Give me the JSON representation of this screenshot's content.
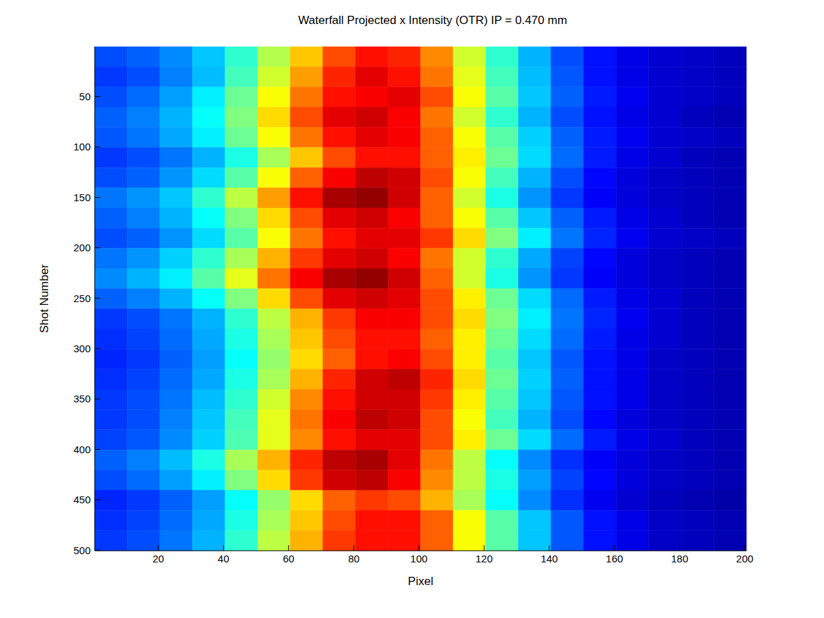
{
  "chart_data": {
    "type": "heatmap",
    "title": "Waterfall Projected x Intensity (OTR) IP = 0.470 mm",
    "x_label": "Pixel",
    "y_label": "Shot Number",
    "xlim": [
      0.5,
      200.5
    ],
    "xticks": [
      20,
      40,
      60,
      80,
      100,
      120,
      140,
      160,
      180,
      200
    ],
    "ylim": [
      0.5,
      500.5
    ],
    "yticks": [
      50,
      100,
      150,
      200,
      250,
      300,
      350,
      400,
      450,
      500
    ],
    "x_bins": [
      0.5,
      10.5,
      20.5,
      30.5,
      40.5,
      50.5,
      60.5,
      70.5,
      80.5,
      90.5,
      100.5,
      110.5,
      120.5,
      130.5,
      140.5,
      150.5,
      160.5,
      170.5,
      180.5,
      190.5,
      200.5
    ],
    "y_bins": [
      0.5,
      20.5,
      40.5,
      60.5,
      80.5,
      100.5,
      120.5,
      140.5,
      160.5,
      180.5,
      200.5,
      220.5,
      240.5,
      260.5,
      280.5,
      300.5,
      320.5,
      340.5,
      360.5,
      380.5,
      400.5,
      420.5,
      440.5,
      460.5,
      480.5,
      500.5
    ],
    "zlim": [
      0,
      1
    ],
    "cells": [
      [
        0.2,
        0.22,
        0.26,
        0.32,
        0.42,
        0.55,
        0.68,
        0.8,
        0.86,
        0.84,
        0.74,
        0.58,
        0.42,
        0.3,
        0.2,
        0.14,
        0.1,
        0.08,
        0.07,
        0.06
      ],
      [
        0.18,
        0.2,
        0.25,
        0.31,
        0.44,
        0.58,
        0.72,
        0.84,
        0.9,
        0.86,
        0.76,
        0.6,
        0.44,
        0.31,
        0.21,
        0.14,
        0.1,
        0.08,
        0.07,
        0.06
      ],
      [
        0.2,
        0.23,
        0.28,
        0.36,
        0.48,
        0.62,
        0.76,
        0.86,
        0.88,
        0.9,
        0.8,
        0.62,
        0.46,
        0.32,
        0.22,
        0.15,
        0.11,
        0.08,
        0.07,
        0.06
      ],
      [
        0.22,
        0.25,
        0.3,
        0.38,
        0.5,
        0.66,
        0.8,
        0.9,
        0.92,
        0.88,
        0.76,
        0.58,
        0.42,
        0.3,
        0.2,
        0.14,
        0.1,
        0.08,
        0.06,
        0.05
      ],
      [
        0.21,
        0.24,
        0.29,
        0.36,
        0.48,
        0.62,
        0.76,
        0.86,
        0.9,
        0.88,
        0.78,
        0.62,
        0.46,
        0.33,
        0.22,
        0.15,
        0.11,
        0.08,
        0.07,
        0.06
      ],
      [
        0.18,
        0.2,
        0.24,
        0.3,
        0.4,
        0.54,
        0.68,
        0.8,
        0.86,
        0.86,
        0.78,
        0.64,
        0.48,
        0.34,
        0.23,
        0.15,
        0.1,
        0.08,
        0.06,
        0.05
      ],
      [
        0.2,
        0.22,
        0.27,
        0.34,
        0.46,
        0.62,
        0.78,
        0.88,
        0.94,
        0.92,
        0.8,
        0.62,
        0.44,
        0.3,
        0.2,
        0.13,
        0.09,
        0.07,
        0.06,
        0.05
      ],
      [
        0.24,
        0.27,
        0.32,
        0.42,
        0.56,
        0.72,
        0.86,
        0.96,
        0.98,
        0.92,
        0.78,
        0.58,
        0.4,
        0.27,
        0.18,
        0.12,
        0.09,
        0.07,
        0.06,
        0.05
      ],
      [
        0.22,
        0.25,
        0.3,
        0.38,
        0.5,
        0.66,
        0.8,
        0.9,
        0.92,
        0.88,
        0.78,
        0.62,
        0.46,
        0.32,
        0.22,
        0.15,
        0.1,
        0.08,
        0.06,
        0.05
      ],
      [
        0.2,
        0.22,
        0.27,
        0.34,
        0.46,
        0.62,
        0.76,
        0.86,
        0.9,
        0.9,
        0.82,
        0.66,
        0.5,
        0.36,
        0.24,
        0.16,
        0.11,
        0.08,
        0.07,
        0.06
      ],
      [
        0.24,
        0.27,
        0.33,
        0.42,
        0.54,
        0.7,
        0.82,
        0.9,
        0.92,
        0.88,
        0.76,
        0.58,
        0.42,
        0.29,
        0.19,
        0.13,
        0.09,
        0.07,
        0.06,
        0.05
      ],
      [
        0.26,
        0.3,
        0.36,
        0.46,
        0.6,
        0.76,
        0.88,
        0.96,
        0.98,
        0.92,
        0.78,
        0.58,
        0.4,
        0.27,
        0.18,
        0.12,
        0.09,
        0.07,
        0.06,
        0.05
      ],
      [
        0.22,
        0.25,
        0.3,
        0.38,
        0.5,
        0.66,
        0.8,
        0.9,
        0.92,
        0.9,
        0.8,
        0.64,
        0.48,
        0.34,
        0.23,
        0.15,
        0.1,
        0.08,
        0.06,
        0.05
      ],
      [
        0.18,
        0.2,
        0.24,
        0.3,
        0.42,
        0.56,
        0.7,
        0.82,
        0.88,
        0.88,
        0.8,
        0.66,
        0.5,
        0.36,
        0.24,
        0.16,
        0.11,
        0.08,
        0.06,
        0.05
      ],
      [
        0.17,
        0.19,
        0.23,
        0.29,
        0.4,
        0.54,
        0.68,
        0.8,
        0.86,
        0.86,
        0.78,
        0.64,
        0.48,
        0.34,
        0.23,
        0.15,
        0.1,
        0.08,
        0.06,
        0.05
      ],
      [
        0.16,
        0.18,
        0.22,
        0.28,
        0.38,
        0.52,
        0.66,
        0.78,
        0.86,
        0.88,
        0.8,
        0.64,
        0.46,
        0.32,
        0.21,
        0.14,
        0.1,
        0.07,
        0.06,
        0.05
      ],
      [
        0.17,
        0.19,
        0.23,
        0.29,
        0.4,
        0.54,
        0.7,
        0.84,
        0.92,
        0.94,
        0.84,
        0.66,
        0.48,
        0.33,
        0.22,
        0.14,
        0.1,
        0.07,
        0.06,
        0.05
      ],
      [
        0.18,
        0.2,
        0.24,
        0.31,
        0.42,
        0.58,
        0.74,
        0.86,
        0.92,
        0.92,
        0.82,
        0.64,
        0.46,
        0.32,
        0.21,
        0.14,
        0.1,
        0.07,
        0.06,
        0.05
      ],
      [
        0.18,
        0.2,
        0.25,
        0.32,
        0.44,
        0.6,
        0.76,
        0.88,
        0.94,
        0.92,
        0.8,
        0.62,
        0.44,
        0.3,
        0.2,
        0.13,
        0.09,
        0.07,
        0.06,
        0.05
      ],
      [
        0.19,
        0.21,
        0.26,
        0.33,
        0.45,
        0.6,
        0.74,
        0.86,
        0.9,
        0.9,
        0.8,
        0.64,
        0.48,
        0.34,
        0.23,
        0.15,
        0.1,
        0.08,
        0.06,
        0.05
      ],
      [
        0.22,
        0.25,
        0.31,
        0.4,
        0.54,
        0.7,
        0.84,
        0.94,
        0.96,
        0.9,
        0.76,
        0.56,
        0.38,
        0.26,
        0.17,
        0.12,
        0.09,
        0.07,
        0.06,
        0.05
      ],
      [
        0.2,
        0.23,
        0.28,
        0.36,
        0.5,
        0.66,
        0.82,
        0.92,
        0.94,
        0.88,
        0.74,
        0.56,
        0.4,
        0.28,
        0.19,
        0.13,
        0.09,
        0.07,
        0.06,
        0.05
      ],
      [
        0.16,
        0.18,
        0.22,
        0.28,
        0.38,
        0.52,
        0.66,
        0.78,
        0.82,
        0.8,
        0.7,
        0.54,
        0.38,
        0.26,
        0.17,
        0.11,
        0.08,
        0.06,
        0.05,
        0.04
      ],
      [
        0.17,
        0.19,
        0.23,
        0.29,
        0.4,
        0.54,
        0.68,
        0.8,
        0.86,
        0.86,
        0.78,
        0.62,
        0.46,
        0.32,
        0.21,
        0.14,
        0.1,
        0.07,
        0.06,
        0.05
      ],
      [
        0.18,
        0.2,
        0.24,
        0.3,
        0.42,
        0.56,
        0.7,
        0.82,
        0.86,
        0.86,
        0.78,
        0.62,
        0.46,
        0.32,
        0.21,
        0.14,
        0.1,
        0.07,
        0.06,
        0.05
      ]
    ]
  }
}
